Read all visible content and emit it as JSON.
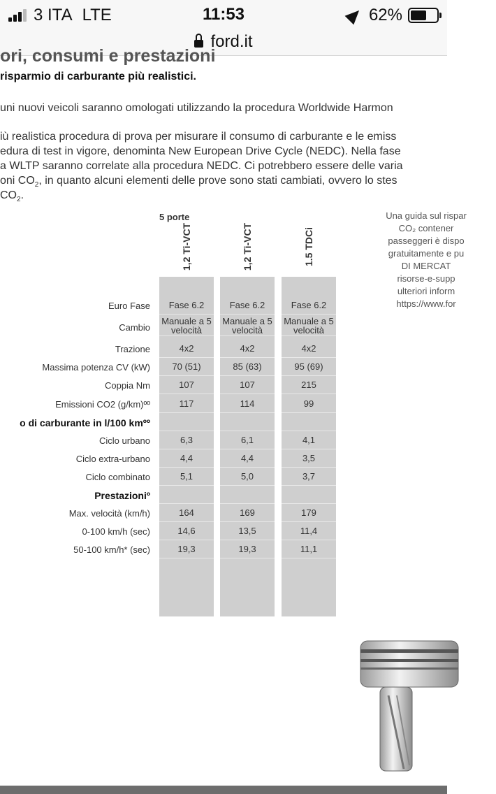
{
  "status_bar": {
    "carrier": "3 ITA",
    "network": "LTE",
    "time": "11:53",
    "battery": "62%",
    "battery_level": 0.62
  },
  "url_bar": {
    "domain": "ford.it"
  },
  "document": {
    "heading": "ori, consumi e prestazioni",
    "subheading": "risparmio di carburante più realistici.",
    "paragraphs": [
      "uni nuovi veicoli saranno omologati utilizzando la procedura Worldwide Harmon",
      "iù realistica procedura di prova per misurare il consumo di carburante e le emiss",
      "edura di test in vigore, denominta New European Drive Cycle (NEDC). Nella fase",
      "a WLTP saranno correlate alla procedura NEDC. Ci potrebbero essere delle varia",
      "oni CO",
      ", in quanto alcuni elementi delle prove sono stati cambiati, ovvero lo stes",
      "CO"
    ],
    "co2_sub": "2"
  },
  "side_note": {
    "lines": [
      "Una guida sul rispar",
      "CO₂ contener",
      "passeggeri è dispo",
      "gratuitamente e pu",
      "DI MERCAT",
      "risorse-e-supp",
      "ulteriori inform",
      "https://www.for"
    ]
  },
  "table": {
    "group_label": "5 porte",
    "columns": [
      "1,2 Ti-VCT",
      "1,2 Ti-VCT",
      "1.5 TDCi"
    ],
    "rows": [
      {
        "label": "Euro Fase",
        "values": [
          "Fase 6.2",
          "Fase 6.2",
          "Fase 6.2"
        ]
      },
      {
        "label": "Cambio",
        "values": [
          "Manuale a 5 velocità",
          "Manuale a 5 velocità",
          "Manuale a 5 velocità"
        ]
      },
      {
        "label": "Trazione",
        "values": [
          "4x2",
          "4x2",
          "4x2"
        ]
      },
      {
        "label": "Massima potenza CV (kW)",
        "values": [
          "70 (51)",
          "85 (63)",
          "95 (69)"
        ]
      },
      {
        "label": "Coppia Nm",
        "values": [
          "107",
          "107",
          "215"
        ]
      },
      {
        "label": "Emissioni CO2 (g/km)ºº",
        "values": [
          "117",
          "114",
          "99"
        ]
      },
      {
        "label": "o di carburante in l/100 kmºº",
        "section": true,
        "values": [
          "",
          "",
          ""
        ]
      },
      {
        "label": "Ciclo urbano",
        "values": [
          "6,3",
          "6,1",
          "4,1"
        ]
      },
      {
        "label": "Ciclo extra-urbano",
        "values": [
          "4,4",
          "4,4",
          "3,5"
        ]
      },
      {
        "label": "Ciclo combinato",
        "values": [
          "5,1",
          "5,0",
          "3,7"
        ]
      },
      {
        "label": "Prestazioniº",
        "section": true,
        "values": [
          "",
          "",
          ""
        ]
      },
      {
        "label": "Max. velocità (km/h)",
        "values": [
          "164",
          "169",
          "179"
        ]
      },
      {
        "label": "0-100 km/h (sec)",
        "values": [
          "14,6",
          "13,5",
          "11,4"
        ]
      },
      {
        "label": "50-100 km/h* (sec)",
        "values": [
          "19,3",
          "19,3",
          "11,1"
        ]
      }
    ]
  },
  "colors": {
    "column_fill": "#cfcfcf",
    "bottom_bar": "#6d6d6d"
  },
  "icons": [
    "signal-icon",
    "location-arrow-icon",
    "battery-icon",
    "lock-icon"
  ]
}
